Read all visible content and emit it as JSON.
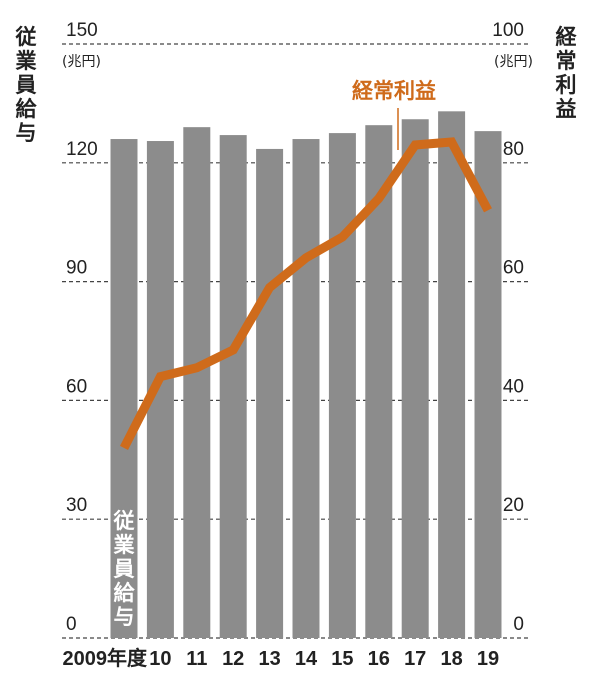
{
  "chart_data": {
    "type": "bar+line",
    "categories": [
      "2009年度",
      "10",
      "11",
      "12",
      "13",
      "14",
      "15",
      "16",
      "17",
      "18",
      "19"
    ],
    "left_axis": {
      "label": "従業員給与",
      "unit": "(兆円)",
      "range": [
        0,
        150
      ],
      "ticks": [
        "0",
        "30",
        "60",
        "90",
        "120",
        "150"
      ]
    },
    "right_axis": {
      "label": "経常利益",
      "unit": "(兆円)",
      "range": [
        0,
        100
      ],
      "ticks": [
        "0",
        "20",
        "40",
        "60",
        "80",
        "100"
      ]
    },
    "series": [
      {
        "name": "従業員給与",
        "type": "bar",
        "axis": "left",
        "color": "#8c8c8c",
        "values": [
          126,
          125.5,
          129,
          127,
          123.5,
          126,
          127.5,
          129.5,
          131,
          133,
          128
        ]
      },
      {
        "name": "経常利益",
        "type": "line",
        "axis": "right",
        "color": "#cf6b1b",
        "values": [
          32,
          44,
          45.5,
          48.5,
          59,
          64,
          67.5,
          74,
          83,
          83.5,
          72
        ]
      }
    ],
    "grid": "dashed-horizontal",
    "legend": "inline-labels"
  }
}
